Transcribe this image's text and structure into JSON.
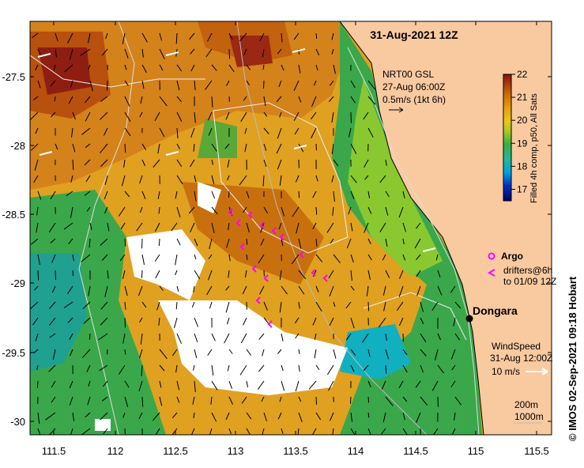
{
  "map": {
    "title": "31-Aug-2021 12Z",
    "lon_ticks": [
      "111.5",
      "112",
      "112.5",
      "113",
      "113.5",
      "114",
      "114.5",
      "115",
      "115.5"
    ],
    "lat_ticks": [
      "-27.5",
      "-28",
      "-28.5",
      "-29",
      "-29.5",
      "-30"
    ],
    "current_legend": {
      "line1": "NRT00 GSL",
      "line2": "27-Aug 06:00Z",
      "line3": "0.5m/s (1kt 6h)"
    },
    "colorbar": {
      "ticks": [
        "22",
        "21",
        "20",
        "19",
        "18",
        "17"
      ],
      "label": "Filled 4h comp, p50, All Sats",
      "range": [
        16.5,
        22
      ]
    },
    "argo_legend": {
      "argo": "Argo",
      "drifters1": "drifters@6h",
      "drifters2": "to 01/09 12Z"
    },
    "place": "Dongara",
    "wind_legend": {
      "line1": "WindSpeed",
      "line2": "31-Aug 12:00Z",
      "line3": "10 m/s"
    },
    "contours": [
      "200m",
      "1000m"
    ],
    "credit": "© IMOS 02-Sep-2021 09:18 Hobart",
    "colors": {
      "land": "#f9c9a0",
      "warm": "#d88a10",
      "cool": "#3aa84a",
      "drifter": "#ff00ff",
      "cloud": "#ffffff"
    }
  }
}
